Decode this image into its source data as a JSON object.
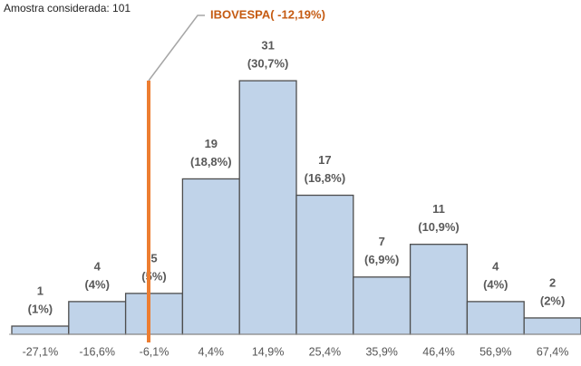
{
  "chart_data": {
    "type": "bar",
    "subtitle": "Amostra considerada: 101",
    "annotation": "IBOVESPA( -12,19%)",
    "categories": [
      "-27,1%",
      "-16,6%",
      "-6,1%",
      "4,4%",
      "14,9%",
      "25,4%",
      "35,9%",
      "46,4%",
      "56,9%",
      "67,4%"
    ],
    "values": [
      1,
      4,
      5,
      19,
      31,
      17,
      7,
      11,
      4,
      2
    ],
    "percent_labels": [
      "(1%)",
      "(4%)",
      "(5%)",
      "(18,8%)",
      "(30,7%)",
      "(16,8%)",
      "(6,9%)",
      "(10,9%)",
      "(4%)",
      "(2%)"
    ],
    "color": "#c0d3e9",
    "ylim": [
      0,
      35
    ]
  }
}
